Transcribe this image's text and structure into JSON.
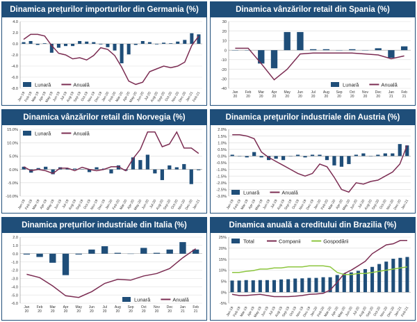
{
  "colors": {
    "header_bg": "#1f4e79",
    "bar": "#1f4e79",
    "line": "#7b2c52",
    "line2": "#8dc63f",
    "grid": "#d9d9d9"
  },
  "chart_data": [
    {
      "type": "bar+line",
      "title": "Dinamica prețurilor importurilor din Germania (%)",
      "categories": [
        "Jan-19",
        "Feb-19",
        "Mar-19",
        "Apr-19",
        "May-19",
        "Jun-19",
        "Jul-19",
        "Aug-19",
        "Sep-19",
        "Oct-19",
        "Nov-19",
        "Dec-19",
        "Jan-20",
        "Feb-20",
        "Mar-20",
        "Apr-20",
        "May-20",
        "Jun-20",
        "Jul-20",
        "Aug-20",
        "Sep-20",
        "Oct-20",
        "Nov-20",
        "Dec-20",
        "Jan-21",
        "Feb-21"
      ],
      "ylim": [
        -8,
        4
      ],
      "yticks": [
        -8,
        -6,
        -4,
        -2,
        0,
        2,
        4
      ],
      "tick_decimals": 1,
      "tick_suffix": "",
      "legend": "bottom-left",
      "series": [
        {
          "name": "Lunară",
          "kind": "bar",
          "values": [
            0.3,
            0.5,
            -0.2,
            0.1,
            -1.6,
            -0.7,
            -0.4,
            -0.4,
            0.5,
            0.4,
            0.3,
            -0.1,
            -0.6,
            -1.2,
            -3.5,
            -1.9,
            -0.2,
            0.5,
            0.3,
            -0.1,
            0.2,
            0.1,
            0.4,
            0.7,
            1.9,
            1.7
          ]
        },
        {
          "name": "Anuală",
          "kind": "line",
          "values": [
            0.8,
            1.7,
            1.7,
            1.4,
            -0.3,
            -1.7,
            -2.0,
            -2.7,
            -2.5,
            -2.9,
            -2.1,
            -0.7,
            -1.0,
            -2.1,
            -4.2,
            -6.7,
            -7.3,
            -6.9,
            -5.0,
            -4.5,
            -4.0,
            -4.3,
            -4.0,
            -3.3,
            -0.3,
            1.4
          ]
        }
      ]
    },
    {
      "type": "bar+line",
      "title": "Dinamica vânzărilor retail din Spania (%)",
      "categories": [
        "Jan-20",
        "Feb-20",
        "Mar-20",
        "Apr-20",
        "May-20",
        "Jun-20",
        "Jul-20",
        "Aug-20",
        "Sep-20",
        "Oct-20",
        "Nov-20",
        "Dec-20",
        "Jan-21",
        "Feb-21"
      ],
      "ylim": [
        -40,
        30
      ],
      "yticks": [
        -40,
        -30,
        -20,
        -10,
        0,
        10,
        20,
        30
      ],
      "tick_decimals": 0,
      "tick_suffix": "",
      "legend": "bottom-right",
      "series": [
        {
          "name": "Lunară",
          "kind": "bar",
          "values": [
            0,
            0,
            -14,
            -19,
            19,
            19,
            1,
            1,
            0,
            1,
            0,
            2,
            -8,
            4
          ]
        },
        {
          "name": "Anuală",
          "kind": "line",
          "values": [
            2,
            2,
            -14,
            -31,
            -20,
            -4,
            -3,
            -3,
            -3,
            -3,
            -4,
            -5,
            -9,
            -6
          ]
        }
      ]
    },
    {
      "type": "bar+line",
      "title": "Dinamica vânzărilor retail din Norvegia (%)",
      "categories": [
        "Jan-19",
        "Feb-19",
        "Mar-19",
        "Apr-19",
        "May-19",
        "Jun-19",
        "Jul-19",
        "Aug-19",
        "Sep-19",
        "Oct-19",
        "Nov-19",
        "Dec-19",
        "Jan-20",
        "Feb-20",
        "Mar-20",
        "Apr-20",
        "May-20",
        "Jun-20",
        "Jul-20",
        "Aug-20",
        "Sep-20",
        "Oct-20",
        "Nov-20",
        "Dec-20",
        "Jan-21"
      ],
      "ylim": [
        -10,
        15
      ],
      "yticks": [
        -10,
        -5,
        0,
        5,
        10,
        15
      ],
      "tick_decimals": 1,
      "tick_suffix": "%",
      "legend": "top-left",
      "series": [
        {
          "name": "Lunară",
          "kind": "bar",
          "values": [
            1.0,
            -1.2,
            0.5,
            1.0,
            -1.8,
            0.8,
            0.3,
            0.3,
            0.1,
            -1.0,
            0.8,
            0.3,
            -1.5,
            1.5,
            -0.5,
            4.5,
            3.5,
            5.5,
            -1.5,
            -4.0,
            1.5,
            0.8,
            2.0,
            -5.5,
            -0.3
          ]
        },
        {
          "name": "Anuală",
          "kind": "line",
          "values": [
            1.0,
            -0.5,
            0.0,
            -0.5,
            -1.5,
            0.5,
            0.5,
            -0.5,
            0.8,
            0.0,
            -0.5,
            0.0,
            1.0,
            1.0,
            -0.5,
            4.0,
            7.5,
            14.0,
            14.0,
            8.5,
            9.5,
            14.0,
            8.0,
            8.0,
            6.0
          ]
        }
      ]
    },
    {
      "type": "bar+line",
      "title": "Dinamica prețurilor industriale din Austria (%)",
      "categories": [
        "Jan-19",
        "Feb-19",
        "Mar-19",
        "Apr-19",
        "May-19",
        "Jun-19",
        "Jul-19",
        "Aug-19",
        "Sep-19",
        "Oct-19",
        "Nov-19",
        "Dec-19",
        "Jan-20",
        "Feb-20",
        "Mar-20",
        "Apr-20",
        "May-20",
        "Jun-20",
        "Jul-20",
        "Aug-20",
        "Sep-20",
        "Oct-20",
        "Nov-20",
        "Dec-20",
        "Jan-21"
      ],
      "ylim": [
        -3,
        2
      ],
      "yticks": [
        -3,
        -2.5,
        -2,
        -1.5,
        -1,
        -0.5,
        0,
        0.5,
        1,
        1.5,
        2
      ],
      "tick_decimals": 1,
      "tick_suffix": "%",
      "legend": "bottom-left",
      "series": [
        {
          "name": "Lunară",
          "kind": "bar",
          "values": [
            0.1,
            0.0,
            -0.1,
            0.3,
            -0.1,
            -0.3,
            -0.2,
            -0.3,
            0.0,
            0.1,
            -0.1,
            0.1,
            0.1,
            -0.3,
            -0.7,
            -0.8,
            -0.6,
            0.1,
            0.2,
            0.0,
            0.1,
            0.2,
            0.2,
            0.9,
            0.8
          ]
        },
        {
          "name": "Anuală",
          "kind": "line",
          "values": [
            1.6,
            1.6,
            1.5,
            1.3,
            0.3,
            -0.1,
            -0.4,
            -0.7,
            -1.0,
            -1.3,
            -1.5,
            -1.3,
            -0.6,
            -0.8,
            -1.6,
            -2.5,
            -2.7,
            -2.0,
            -2.1,
            -1.9,
            -1.8,
            -1.5,
            -1.2,
            -0.6,
            0.8
          ]
        }
      ]
    },
    {
      "type": "bar+line",
      "title": "Dinamica prețurilor industriale din Italia (%)",
      "categories": [
        "Jan-20",
        "Feb-20",
        "Mar-20",
        "Apr-20",
        "May-20",
        "Jun-20",
        "Jul-20",
        "Aug-20",
        "Sep-20",
        "Oct-20",
        "Nov-20",
        "Dec-20",
        "Jan-21",
        "Feb-21"
      ],
      "ylim": [
        -6,
        2
      ],
      "yticks": [
        -6,
        -5,
        -4,
        -3,
        -2,
        -1,
        0,
        1,
        2
      ],
      "tick_decimals": 1,
      "tick_suffix": "",
      "legend": "bottom-right",
      "series": [
        {
          "name": "Lunară",
          "kind": "bar",
          "values": [
            -0.1,
            -0.4,
            -1.1,
            -2.6,
            -0.1,
            0.5,
            0.9,
            0.1,
            0.0,
            0.7,
            0.1,
            0.5,
            1.4,
            0.5
          ]
        },
        {
          "name": "Anuală",
          "kind": "line",
          "values": [
            -2.5,
            -2.9,
            -3.9,
            -5.1,
            -5.3,
            -4.6,
            -3.6,
            -3.1,
            -3.2,
            -2.7,
            -2.4,
            -1.8,
            -0.5,
            0.6
          ]
        }
      ]
    },
    {
      "type": "bar+line",
      "title": "Dinamica anuală a creditului din Brazilia (%)",
      "categories": [
        "Jan-19",
        "Feb-19",
        "Mar-19",
        "Apr-19",
        "May-19",
        "Jun-19",
        "Jul-19",
        "Aug-19",
        "Sep-19",
        "Oct-19",
        "Nov-19",
        "Dec-19",
        "Jan-20",
        "Feb-20",
        "Mar-20",
        "Apr-20",
        "May-20",
        "Jun-20",
        "Jul-20",
        "Aug-20",
        "Sep-20",
        "Oct-20",
        "Nov-20",
        "Dec-20",
        "Jan-21",
        "Feb-21"
      ],
      "ylim": [
        -5,
        25
      ],
      "yticks": [
        -5,
        0,
        5,
        10,
        15,
        20,
        25
      ],
      "tick_decimals": 0,
      "tick_suffix": "%",
      "legend": "top-left",
      "series": [
        {
          "name": "Total",
          "kind": "bar",
          "values": [
            5.3,
            5.3,
            5.5,
            5.4,
            5.5,
            5.5,
            5.5,
            5.8,
            5.9,
            6.2,
            6.3,
            6.5,
            6.5,
            6.8,
            6.8,
            7.8,
            8.5,
            9.0,
            9.7,
            10.5,
            11.5,
            12.8,
            13.9,
            15.2,
            15.6,
            16.0
          ]
        },
        {
          "name": "Companii",
          "kind": "line",
          "values": [
            -1.0,
            -1.5,
            -1.5,
            -1.2,
            -1.0,
            -1.5,
            -2.0,
            -2.0,
            -2.0,
            -1.8,
            -1.5,
            -1.0,
            -0.8,
            -0.5,
            1.0,
            4.5,
            8.5,
            10.0,
            12.0,
            14.0,
            17.5,
            19.5,
            21.5,
            22.0,
            23.5,
            23.5
          ]
        },
        {
          "name": "Gospodării",
          "kind": "line",
          "values": [
            9.0,
            9.0,
            9.5,
            9.8,
            10.5,
            10.5,
            11.0,
            11.0,
            11.5,
            11.5,
            11.5,
            12.0,
            12.0,
            12.0,
            11.5,
            9.0,
            8.0,
            8.0,
            8.5,
            8.5,
            9.0,
            9.5,
            10.0,
            10.5,
            11.0,
            11.5
          ]
        }
      ]
    }
  ]
}
